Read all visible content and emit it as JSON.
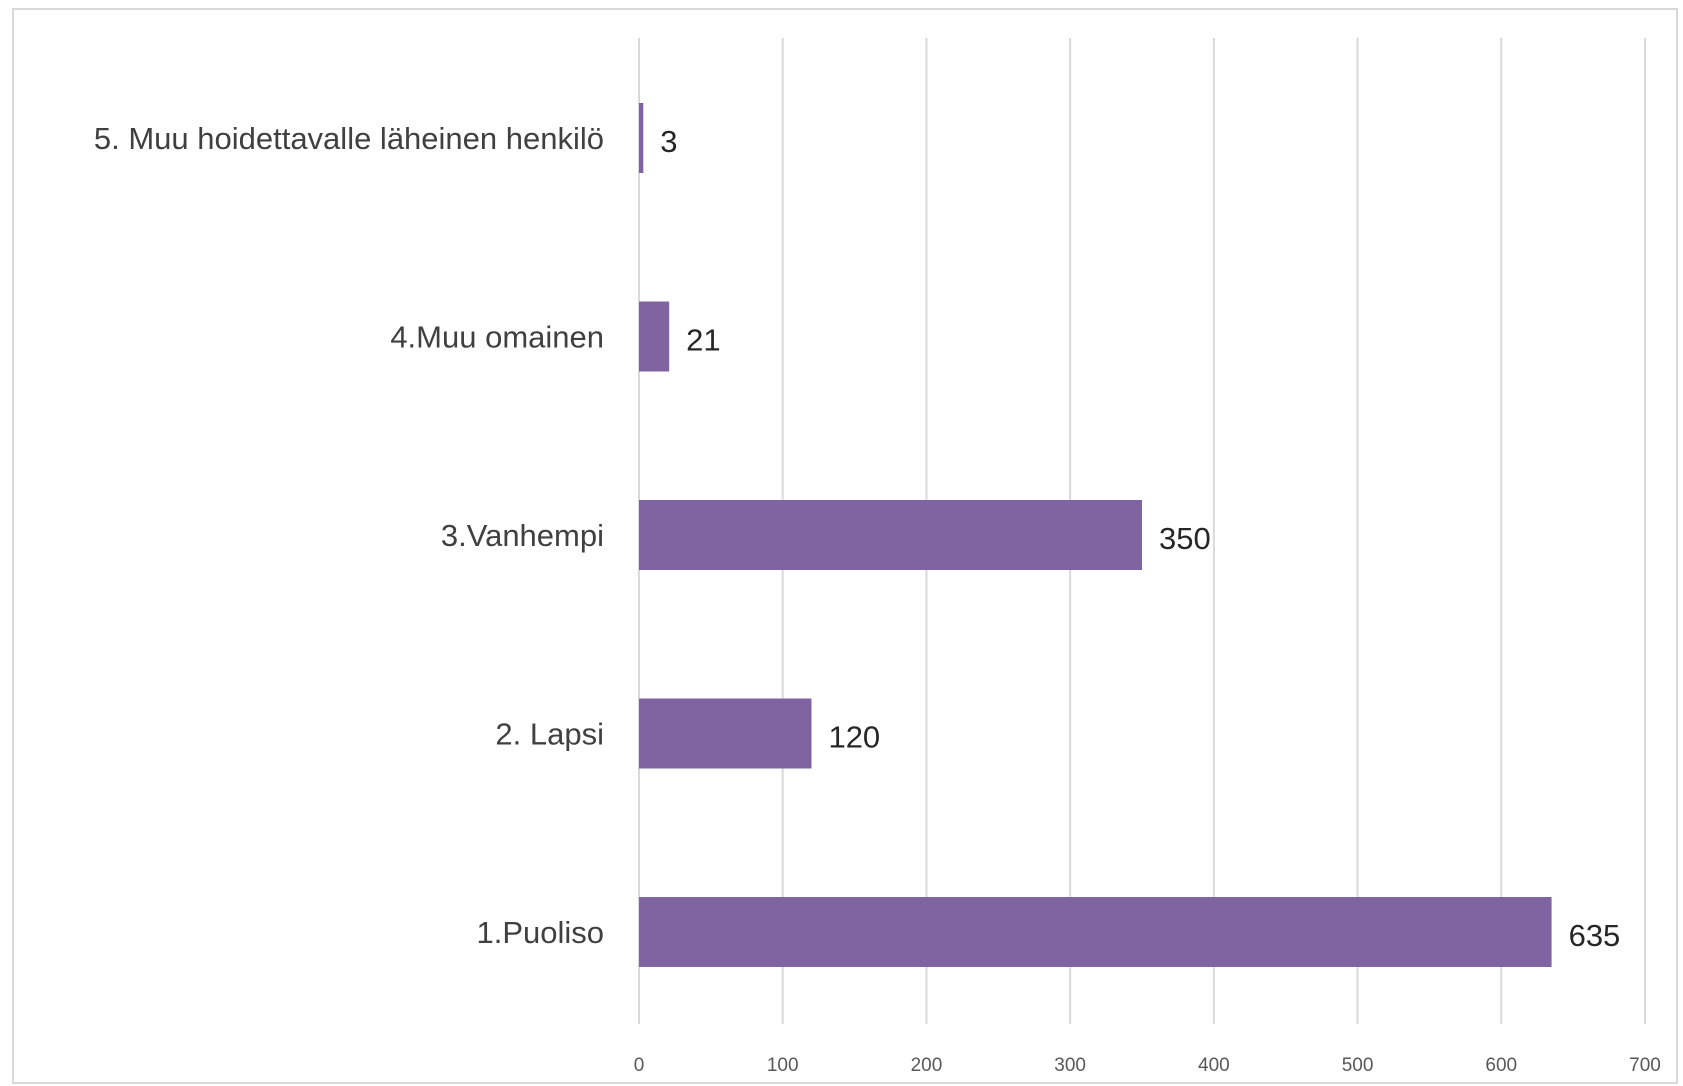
{
  "chart_data": {
    "type": "bar",
    "orientation": "horizontal",
    "categories": [
      "1.Puoliso",
      "2. Lapsi",
      "3.Vanhempi",
      "4.Muu omainen",
      "5. Muu hoidettavalle läheinen henkilö"
    ],
    "values": [
      635,
      120,
      350,
      21,
      3
    ],
    "data_labels": [
      "635",
      "120",
      "350",
      "21",
      "3"
    ],
    "title": "",
    "xlabel": "",
    "ylabel": "",
    "xlim": [
      0,
      700
    ],
    "x_ticks": [
      0,
      100,
      200,
      300,
      400,
      500,
      600,
      700
    ],
    "x_tick_labels": [
      "0",
      "100",
      "200",
      "300",
      "400",
      "500",
      "600",
      "700"
    ],
    "grid": "vertical",
    "legend": "none",
    "colors": {
      "bar": "#8064a2",
      "grid": "#d9d9d9"
    }
  }
}
